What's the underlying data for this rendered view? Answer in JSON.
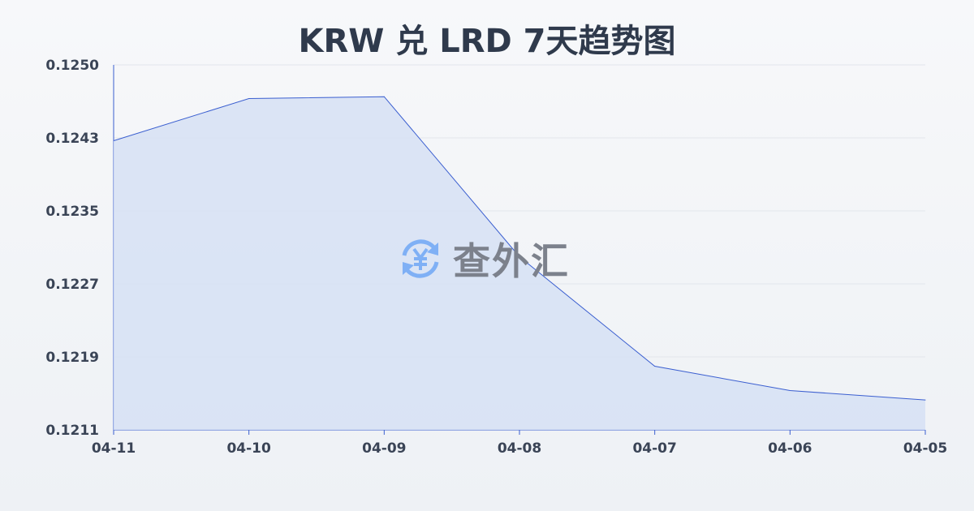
{
  "chart_data": {
    "type": "area",
    "title": "KRW 兑 LRD 7天趋势图",
    "xlabel": "",
    "ylabel": "",
    "categories": [
      "04-11",
      "04-10",
      "04-09",
      "04-08",
      "04-07",
      "04-06",
      "04-05"
    ],
    "values": [
      0.12419,
      0.12464,
      0.12466,
      0.12295,
      0.12178,
      0.12152,
      0.12142
    ],
    "ylim": [
      0.1211,
      0.125
    ],
    "yticks": [
      "0.1250",
      "0.1243",
      "0.1235",
      "0.1227",
      "0.1219",
      "0.1211"
    ],
    "grid": true,
    "colors": {
      "line": "#3b5fd0",
      "fill": "#d6e0f5",
      "grid": "#e3e6ec"
    }
  },
  "watermark": {
    "text": "查外汇",
    "icon": "yen-exchange-icon",
    "icon_color": "#7fb0f5"
  }
}
